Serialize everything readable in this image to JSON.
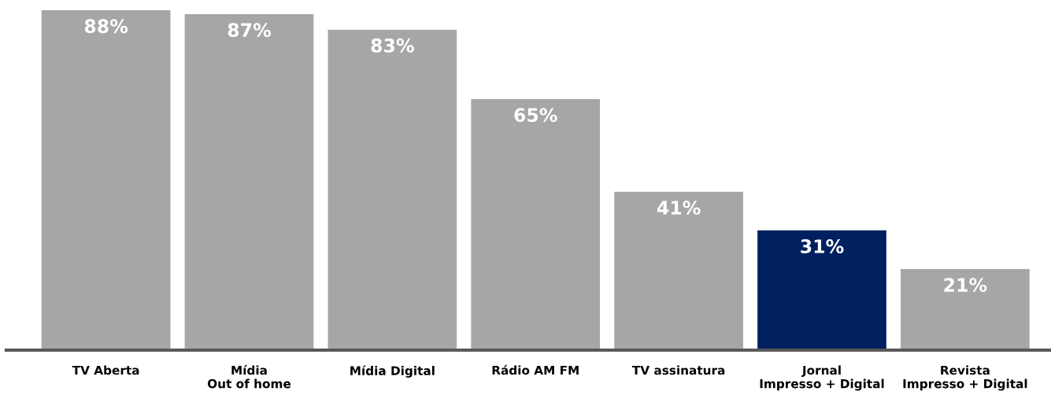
{
  "chart_data": {
    "type": "bar",
    "categories": [
      "TV Aberta",
      "Mídia\nOut of home",
      "Mídia Digital",
      "Rádio AM FM",
      "TV assinatura",
      "Jornal\nImpresso + Digital",
      "Revista\nImpresso + Digital"
    ],
    "values": [
      88,
      87,
      83,
      65,
      41,
      31,
      21
    ],
    "value_labels": [
      "88%",
      "87%",
      "83%",
      "65%",
      "41%",
      "31%",
      "21%"
    ],
    "colors": [
      "#a6a6a6",
      "#a6a6a6",
      "#a6a6a6",
      "#a6a6a6",
      "#a6a6a6",
      "#002060",
      "#a6a6a6"
    ],
    "grid": false,
    "legend": false
  }
}
